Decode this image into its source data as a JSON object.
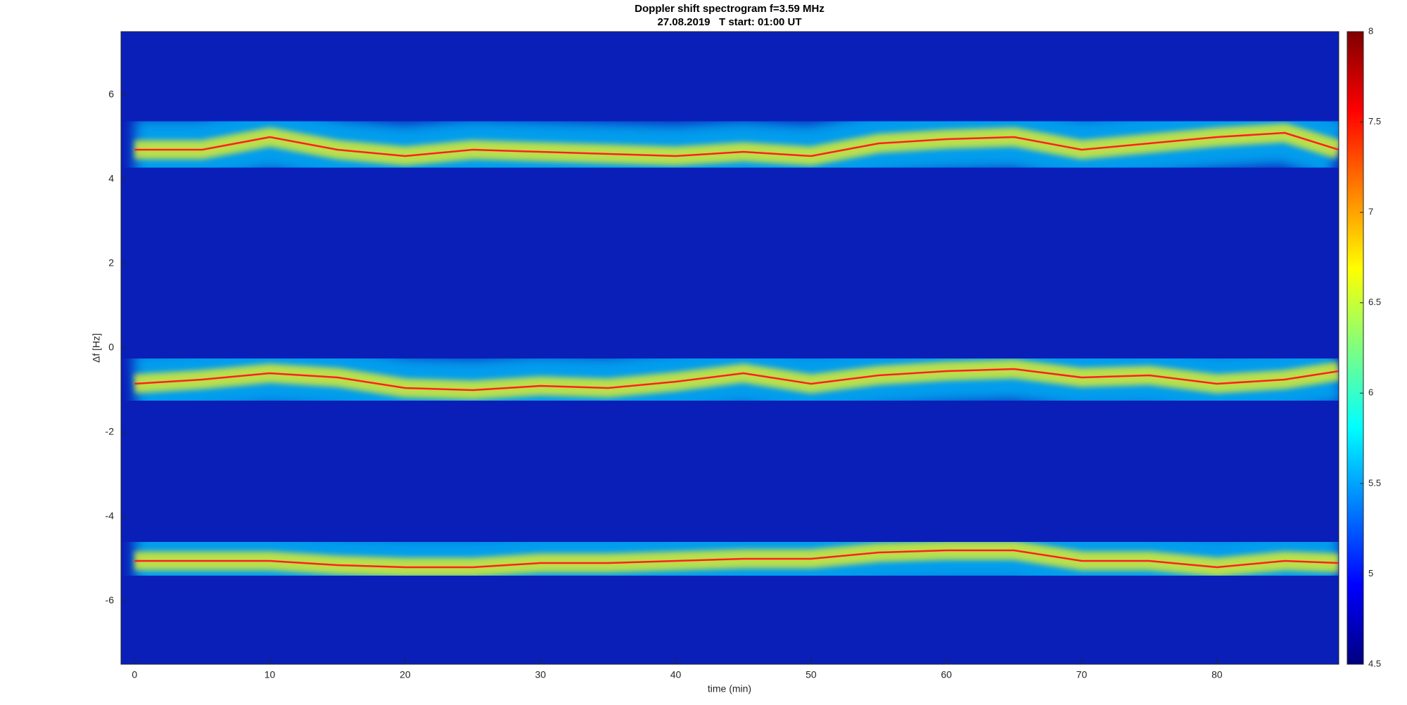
{
  "chart_data": {
    "type": "spectrogram",
    "title": "Doppler shift spectrogram f=3.59 MHz",
    "subtitle": "27.08.2019   T start: 01:00 UT",
    "x_label": "time (min)",
    "y_label": "Δf [Hz]",
    "x": [
      0,
      5,
      10,
      15,
      20,
      25,
      30,
      35,
      40,
      45,
      50,
      55,
      60,
      65,
      70,
      75,
      80,
      85,
      89
    ],
    "series": [
      {
        "name": "upper trace",
        "color": "#ff2020",
        "values": [
          4.7,
          4.7,
          5.0,
          4.7,
          4.55,
          4.7,
          4.65,
          4.6,
          4.55,
          4.65,
          4.55,
          4.85,
          4.95,
          5.0,
          4.7,
          4.85,
          5.0,
          5.1,
          4.7
        ]
      },
      {
        "name": "middle trace",
        "color": "#ff2020",
        "values": [
          -0.85,
          -0.75,
          -0.6,
          -0.7,
          -0.95,
          -1.0,
          -0.9,
          -0.95,
          -0.8,
          -0.6,
          -0.85,
          -0.65,
          -0.55,
          -0.5,
          -0.7,
          -0.65,
          -0.85,
          -0.75,
          -0.55
        ]
      },
      {
        "name": "lower trace",
        "color": "#ff2020",
        "values": [
          -5.05,
          -5.05,
          -5.05,
          -5.15,
          -5.2,
          -5.2,
          -5.1,
          -5.1,
          -5.05,
          -5.0,
          -5.0,
          -4.85,
          -4.8,
          -4.8,
          -5.05,
          -5.05,
          -5.2,
          -5.05,
          -5.1
        ]
      }
    ],
    "xlim": [
      -1,
      89
    ],
    "xticks": [
      0,
      10,
      20,
      30,
      40,
      50,
      60,
      70,
      80
    ],
    "ylim": [
      -7.5,
      7.5
    ],
    "yticks": [
      -6,
      -4,
      -2,
      0,
      2,
      4,
      6
    ],
    "background_color": "#0a1fb8",
    "band_outer_color": "#00c8ff",
    "band_inner_color": "#e8f020",
    "colormap": [
      "#00007f",
      "#0000ff",
      "#007fff",
      "#00ffff",
      "#7fff7f",
      "#ffff00",
      "#ff7f00",
      "#ff0000",
      "#7f0000"
    ],
    "clim": [
      4.5,
      8
    ],
    "cticks": [
      4.5,
      5,
      5.5,
      6,
      6.5,
      7,
      7.5,
      8
    ]
  }
}
